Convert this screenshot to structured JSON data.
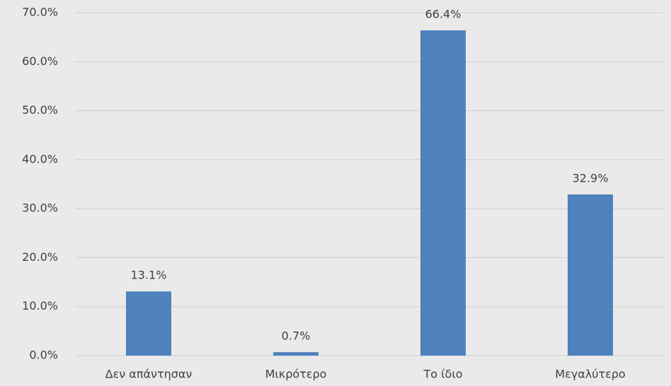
{
  "chart_data": {
    "type": "bar",
    "categories": [
      "Δεν απάντησαν",
      "Μικρότερο",
      "Το ίδιο",
      "Μεγαλύτερο"
    ],
    "values": [
      13.1,
      0.7,
      66.4,
      32.9
    ],
    "value_labels": [
      "13.1%",
      "0.7%",
      "66.4%",
      "32.9%"
    ],
    "color": "#4f81bd",
    "ylim": [
      0,
      70
    ],
    "yticks": [
      {
        "value": 0,
        "label": "0.0%"
      },
      {
        "value": 10,
        "label": "10.0%"
      },
      {
        "value": 20,
        "label": "20.0%"
      },
      {
        "value": 30,
        "label": "30.0%"
      },
      {
        "value": 40,
        "label": "40.0%"
      },
      {
        "value": 50,
        "label": "50.0%"
      },
      {
        "value": 60,
        "label": "60.0%"
      },
      {
        "value": 70,
        "label": "70.0%"
      }
    ],
    "grid": true
  }
}
